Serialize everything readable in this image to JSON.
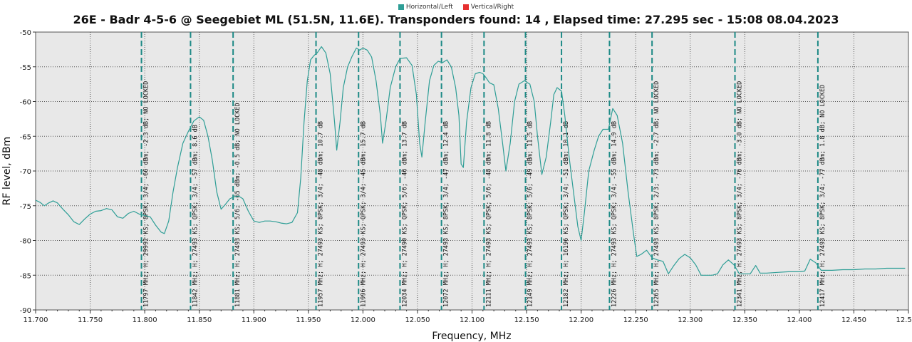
{
  "legend": [
    {
      "name": "Horizontal/Left",
      "color": "#2e9e96"
    },
    {
      "name": "Vertical/Right",
      "color": "#e63030"
    }
  ],
  "chart_data": {
    "type": "line",
    "title": "26E - Badr 4-5-6 @ Seegebiet ML (51.5N, 11.6E). Transponders found: 14 , Elapsed time: 27.295 sec - 15:08 08.04.2023",
    "xlabel": "Frequency, MHz",
    "ylabel": "RF level, dBm",
    "xlim": [
      11700,
      12500
    ],
    "ylim": [
      -90,
      -50
    ],
    "x_ticks": [
      "11.700",
      "11.750",
      "11.800",
      "11.850",
      "11.900",
      "11.950",
      "12.000",
      "12.050",
      "12.100",
      "12.150",
      "12.200",
      "12.250",
      "12.300",
      "12.350",
      "12.400",
      "12.450",
      "12.500"
    ],
    "y_ticks": [
      "-50",
      "-55",
      "-60",
      "-65",
      "-70",
      "-75",
      "-80",
      "-85",
      "-90"
    ],
    "grid": true,
    "legend_position": "top",
    "series": [
      {
        "name": "Horizontal/Left",
        "color": "#2e9e96",
        "points": [
          [
            11700,
            -74.2
          ],
          [
            11704,
            -74.5
          ],
          [
            11708,
            -75
          ],
          [
            11712,
            -74.6
          ],
          [
            11716,
            -74.3
          ],
          [
            11720,
            -74.6
          ],
          [
            11725,
            -75.5
          ],
          [
            11730,
            -76.3
          ],
          [
            11735,
            -77.3
          ],
          [
            11740,
            -77.7
          ],
          [
            11745,
            -76.9
          ],
          [
            11750,
            -76.2
          ],
          [
            11755,
            -75.8
          ],
          [
            11760,
            -75.7
          ],
          [
            11765,
            -75.4
          ],
          [
            11770,
            -75.6
          ],
          [
            11775,
            -76.6
          ],
          [
            11780,
            -76.8
          ],
          [
            11785,
            -76.1
          ],
          [
            11790,
            -75.8
          ],
          [
            11795,
            -76.2
          ],
          [
            11800,
            -76.4
          ],
          [
            11805,
            -76.6
          ],
          [
            11810,
            -77.8
          ],
          [
            11815,
            -78.8
          ],
          [
            11818,
            -79
          ],
          [
            11822,
            -77.2
          ],
          [
            11826,
            -73
          ],
          [
            11830,
            -69.5
          ],
          [
            11835,
            -66
          ],
          [
            11840,
            -64.3
          ],
          [
            11845,
            -62.8
          ],
          [
            11850,
            -62.2
          ],
          [
            11854,
            -62.7
          ],
          [
            11858,
            -65
          ],
          [
            11862,
            -68.5
          ],
          [
            11866,
            -73
          ],
          [
            11870,
            -75.5
          ],
          [
            11874,
            -74.8
          ],
          [
            11878,
            -74
          ],
          [
            11882,
            -73.7
          ],
          [
            11886,
            -73.6
          ],
          [
            11890,
            -74
          ],
          [
            11895,
            -75.8
          ],
          [
            11900,
            -77.2
          ],
          [
            11905,
            -77.4
          ],
          [
            11910,
            -77.2
          ],
          [
            11915,
            -77.2
          ],
          [
            11920,
            -77.3
          ],
          [
            11925,
            -77.5
          ],
          [
            11930,
            -77.6
          ],
          [
            11935,
            -77.4
          ],
          [
            11940,
            -76
          ],
          [
            11943,
            -71
          ],
          [
            11946,
            -63
          ],
          [
            11949,
            -57
          ],
          [
            11952,
            -54
          ],
          [
            11955,
            -53.4
          ],
          [
            11958,
            -53
          ],
          [
            11962,
            -52.1
          ],
          [
            11966,
            -53
          ],
          [
            11970,
            -56
          ],
          [
            11974,
            -63
          ],
          [
            11976,
            -67
          ],
          [
            11979,
            -63
          ],
          [
            11982,
            -58
          ],
          [
            11986,
            -55
          ],
          [
            11990,
            -53.5
          ],
          [
            11994,
            -52.3
          ],
          [
            11997,
            -52.6
          ],
          [
            12000,
            -52.3
          ],
          [
            12004,
            -52.6
          ],
          [
            12008,
            -53.6
          ],
          [
            12012,
            -57
          ],
          [
            12016,
            -62
          ],
          [
            12018,
            -66
          ],
          [
            12021,
            -63
          ],
          [
            12025,
            -58
          ],
          [
            12030,
            -55
          ],
          [
            12034,
            -53.8
          ],
          [
            12040,
            -53.7
          ],
          [
            12045,
            -54.8
          ],
          [
            12049,
            -59
          ],
          [
            12052,
            -66
          ],
          [
            12054,
            -68
          ],
          [
            12057,
            -63
          ],
          [
            12061,
            -57
          ],
          [
            12065,
            -54.8
          ],
          [
            12069,
            -54.2
          ],
          [
            12073,
            -54.4
          ],
          [
            12077,
            -54
          ],
          [
            12081,
            -55
          ],
          [
            12085,
            -58
          ],
          [
            12088,
            -62
          ],
          [
            12090,
            -69
          ],
          [
            12092,
            -69.5
          ],
          [
            12095,
            -63
          ],
          [
            12099,
            -58
          ],
          [
            12103,
            -56
          ],
          [
            12107,
            -55.8
          ],
          [
            12110,
            -56
          ],
          [
            12113,
            -56.6
          ],
          [
            12116,
            -57.3
          ],
          [
            12120,
            -57.6
          ],
          [
            12124,
            -61
          ],
          [
            12128,
            -66
          ],
          [
            12131,
            -70
          ],
          [
            12135,
            -66
          ],
          [
            12139,
            -60
          ],
          [
            12143,
            -57.5
          ],
          [
            12148,
            -57
          ],
          [
            12153,
            -57.5
          ],
          [
            12157,
            -60
          ],
          [
            12160,
            -65
          ],
          [
            12164,
            -70.5
          ],
          [
            12168,
            -68
          ],
          [
            12172,
            -63
          ],
          [
            12175,
            -59
          ],
          [
            12178,
            -58
          ],
          [
            12182,
            -58.5
          ],
          [
            12185,
            -62
          ],
          [
            12189,
            -68
          ],
          [
            12193,
            -73
          ],
          [
            12197,
            -78
          ],
          [
            12200,
            -80
          ],
          [
            12203,
            -76
          ],
          [
            12207,
            -70
          ],
          [
            12212,
            -67
          ],
          [
            12216,
            -65
          ],
          [
            12220,
            -64
          ],
          [
            12225,
            -64
          ],
          [
            12229,
            -61
          ],
          [
            12233,
            -62
          ],
          [
            12238,
            -66
          ],
          [
            12243,
            -73
          ],
          [
            12248,
            -79
          ],
          [
            12251,
            -82.3
          ],
          [
            12255,
            -82
          ],
          [
            12260,
            -81.4
          ],
          [
            12265,
            -82.5
          ],
          [
            12270,
            -82.8
          ],
          [
            12275,
            -83
          ],
          [
            12280,
            -84.8
          ],
          [
            12285,
            -83.6
          ],
          [
            12290,
            -82.6
          ],
          [
            12295,
            -82
          ],
          [
            12300,
            -82.5
          ],
          [
            12305,
            -83.5
          ],
          [
            12310,
            -85
          ],
          [
            12315,
            -85
          ],
          [
            12320,
            -85
          ],
          [
            12325,
            -84.8
          ],
          [
            12330,
            -83.5
          ],
          [
            12335,
            -82.8
          ],
          [
            12340,
            -83.5
          ],
          [
            12345,
            -84.8
          ],
          [
            12350,
            -84.8
          ],
          [
            12355,
            -84.8
          ],
          [
            12360,
            -83.6
          ],
          [
            12364,
            -84.7
          ],
          [
            12370,
            -84.7
          ],
          [
            12380,
            -84.6
          ],
          [
            12390,
            -84.5
          ],
          [
            12400,
            -84.5
          ],
          [
            12405,
            -84.4
          ],
          [
            12410,
            -82.7
          ],
          [
            12415,
            -83.2
          ],
          [
            12420,
            -84.3
          ],
          [
            12430,
            -84.3
          ],
          [
            12440,
            -84.2
          ],
          [
            12450,
            -84.2
          ],
          [
            12460,
            -84.1
          ],
          [
            12470,
            -84.1
          ],
          [
            12480,
            -84
          ],
          [
            12487,
            -84
          ],
          [
            12497,
            -84
          ]
        ]
      }
    ],
    "transponders": [
      {
        "freq": 11797,
        "label": "11797 MHz; H; 29992 KS; 8PSK; 3/4; -66 dBm; -2.3 dB; NO LOCKED"
      },
      {
        "freq": 11842,
        "label": "11842 MHz; H; 27493 KS; QPSK; 3/4; -57 dBm; 8.6 dB"
      },
      {
        "freq": 11881,
        "label": "11881 MHz; H; 27493 KS; 5/6; -65 dBm; -0.5 dB; NO LOCKED"
      },
      {
        "freq": 11957,
        "label": "11957 MHz; H; 27493 KS; 8PSK; 3/4; -48 dBm; 10.7 dB"
      },
      {
        "freq": 11996,
        "label": "11996 MHz; H; 27493 KS; QPSK; 3/4; -45 dBm; 15.7 dB"
      },
      {
        "freq": 12034,
        "label": "12034 MHz; H; 27490 KS; QPSK; 5/6; -46 dBm; 13.7 dB"
      },
      {
        "freq": 12072,
        "label": "12072 MHz; H; 27493 KS; 8PSK; 3/4; -47 dBm; 12.4 dB"
      },
      {
        "freq": 12111,
        "label": "12111 MHz; H; 27493 KS; QPSK; 5/6; -48 dBm; 11.8 dB"
      },
      {
        "freq": 12149,
        "label": "12149 MHz; H; 27493 KS; 8PSK; 5/6; -49 dBm; 11.5 dB"
      },
      {
        "freq": 12182,
        "label": "12182 MHz; H; 16196 KS; QPSK; 3/4; -51 dBm; 10.1 dB"
      },
      {
        "freq": 12226,
        "label": "12226 MHz; H; 27493 KS; QPSK; 3/4; -55 dBm; 14.9 dB"
      },
      {
        "freq": 12265,
        "label": "12265 MHz; H; 27493 KS; 8PSK; 2/3; -73 dBm; -2.7 dB; NO LOCKED"
      },
      {
        "freq": 12341,
        "label": "12341 MHz; H; 27493 KS; 8PSK; 3/4; -76 dBm; -3.0 dB; NO LOCKED"
      },
      {
        "freq": 12417,
        "label": "12417 MHz; H; 27493 KS; 8PSK; 3/4; -77 dBm; 1.8 dB; NO LOCKED"
      }
    ]
  }
}
